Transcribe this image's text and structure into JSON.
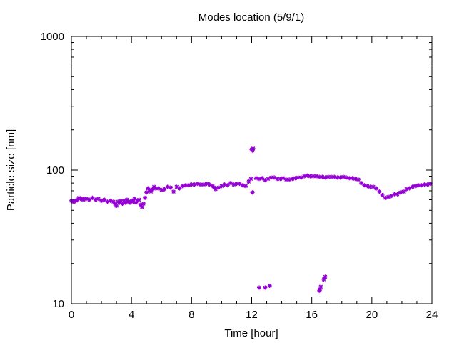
{
  "chart_data": {
    "type": "scatter",
    "title": "Modes location (5/9/1)",
    "xlabel": "Time [hour]",
    "ylabel": "Particle size [nm]",
    "xlim": [
      0,
      24
    ],
    "ylim": [
      10,
      1000
    ],
    "yscale": "log",
    "xticks": [
      0,
      4,
      8,
      12,
      16,
      20,
      24
    ],
    "yticks": [
      10,
      100,
      1000
    ],
    "grid": false,
    "legend": "none",
    "marker_color": "#9400d3",
    "series": [
      {
        "x": [
          0.0,
          0.1,
          0.2,
          0.3,
          0.4,
          0.5,
          0.6,
          0.7,
          0.8,
          0.9,
          1.0,
          1.2,
          1.4,
          1.6,
          1.8,
          2.0,
          2.2,
          2.4,
          2.6,
          2.8,
          2.9,
          3.0,
          3.1,
          3.2,
          3.3,
          3.4,
          3.5,
          3.6,
          3.7,
          3.8,
          3.9,
          4.0,
          4.1,
          4.2,
          4.3,
          4.4,
          4.5,
          4.6,
          4.7,
          4.8,
          4.9,
          5.0,
          5.1,
          5.2,
          5.3,
          5.4,
          5.5,
          5.6,
          5.8,
          6.0,
          6.2,
          6.4,
          6.6,
          6.8,
          7.0,
          7.2,
          7.4,
          7.6,
          7.8,
          8.0,
          8.2,
          8.4,
          8.6,
          8.8,
          9.0,
          9.2,
          9.4,
          9.5,
          9.6,
          9.8,
          10.0,
          10.2,
          10.4,
          10.6,
          10.8,
          11.0,
          11.2,
          11.4,
          11.6,
          11.8,
          11.95,
          12.05,
          12.1,
          12.3,
          12.5,
          12.7,
          12.9,
          13.1,
          13.3,
          13.5,
          13.7,
          13.9,
          14.1,
          14.3,
          14.5,
          14.7,
          14.9,
          15.1,
          15.3,
          15.5,
          15.7,
          15.9,
          16.1,
          16.3,
          16.5,
          16.7,
          16.9,
          17.1,
          17.3,
          17.5,
          17.7,
          17.9,
          18.1,
          18.3,
          18.5,
          18.7,
          18.9,
          19.1,
          19.3,
          19.5,
          19.7,
          19.9,
          20.1,
          20.3,
          20.5,
          20.7,
          20.9,
          21.1,
          21.3,
          21.5,
          21.7,
          21.9,
          22.1,
          22.3,
          22.5,
          22.7,
          22.9,
          23.1,
          23.3,
          23.5,
          23.7,
          23.9,
          12.0,
          12.05,
          12.5,
          12.9,
          13.2,
          16.5,
          16.55,
          16.6,
          16.8,
          16.9
        ],
        "y": [
          59,
          58,
          58,
          59,
          60,
          62,
          61,
          61,
          60,
          61,
          61,
          60,
          62,
          60,
          61,
          59,
          60,
          58,
          59,
          58,
          56,
          54,
          58,
          57,
          59,
          56,
          59,
          57,
          60,
          58,
          57,
          59,
          58,
          61,
          57,
          59,
          60,
          55,
          53,
          56,
          62,
          68,
          73,
          71,
          69,
          72,
          75,
          73,
          73,
          71,
          72,
          75,
          74,
          69,
          75,
          73,
          76,
          77,
          77,
          78,
          78,
          79,
          78,
          78,
          79,
          78,
          76,
          74,
          72,
          74,
          76,
          78,
          77,
          80,
          78,
          79,
          79,
          77,
          76,
          82,
          86,
          68,
          145,
          87,
          86,
          87,
          84,
          86,
          88,
          88,
          86,
          86,
          87,
          85,
          85,
          86,
          87,
          88,
          88,
          90,
          91,
          90,
          90,
          90,
          89,
          89,
          88,
          89,
          89,
          89,
          88,
          88,
          89,
          88,
          87,
          87,
          86,
          85,
          80,
          77,
          76,
          75,
          75,
          73,
          69,
          65,
          62,
          63,
          64,
          66,
          66,
          68,
          69,
          72,
          73,
          75,
          76,
          77,
          77,
          78,
          78,
          79,
          142,
          140,
          13.2,
          13.2,
          13.6,
          12.5,
          12.8,
          13.4,
          15.2,
          15.9
        ]
      }
    ]
  }
}
